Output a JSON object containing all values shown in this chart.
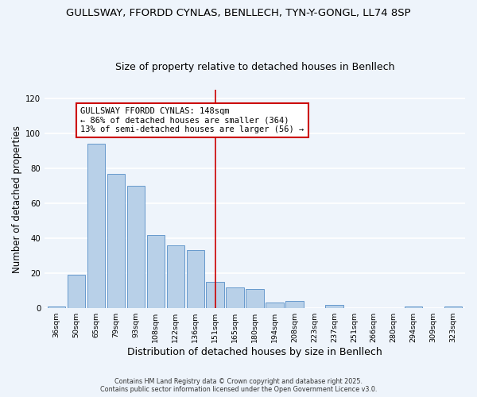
{
  "title": "GULLSWAY, FFORDD CYNLAS, BENLLECH, TYN-Y-GONGL, LL74 8SP",
  "subtitle": "Size of property relative to detached houses in Benllech",
  "xlabel": "Distribution of detached houses by size in Benllech",
  "ylabel": "Number of detached properties",
  "bar_labels": [
    "36sqm",
    "50sqm",
    "65sqm",
    "79sqm",
    "93sqm",
    "108sqm",
    "122sqm",
    "136sqm",
    "151sqm",
    "165sqm",
    "180sqm",
    "194sqm",
    "208sqm",
    "223sqm",
    "237sqm",
    "251sqm",
    "266sqm",
    "280sqm",
    "294sqm",
    "309sqm",
    "323sqm"
  ],
  "bar_values": [
    1,
    19,
    94,
    77,
    70,
    42,
    36,
    33,
    15,
    12,
    11,
    3,
    4,
    0,
    2,
    0,
    0,
    0,
    1,
    0,
    1
  ],
  "bar_color": "#b8d0e8",
  "bar_edge_color": "#6699cc",
  "vline_index": 8,
  "vline_color": "#cc0000",
  "ylim": [
    0,
    125
  ],
  "yticks": [
    0,
    20,
    40,
    60,
    80,
    100,
    120
  ],
  "annotation_title": "GULLSWAY FFORDD CYNLAS: 148sqm",
  "annotation_line1": "← 86% of detached houses are smaller (364)",
  "annotation_line2": "13% of semi-detached houses are larger (56) →",
  "annotation_box_edge_color": "#cc0000",
  "footer1": "Contains HM Land Registry data © Crown copyright and database right 2025.",
  "footer2": "Contains public sector information licensed under the Open Government Licence v3.0.",
  "bg_color": "#eef4fb",
  "grid_color": "#ffffff",
  "title_fontsize": 9.5,
  "subtitle_fontsize": 9.0,
  "ylabel_fontsize": 8.5,
  "xlabel_fontsize": 9.0,
  "annotation_fontsize": 7.5,
  "tick_fontsize": 6.8,
  "footer_fontsize": 5.8
}
